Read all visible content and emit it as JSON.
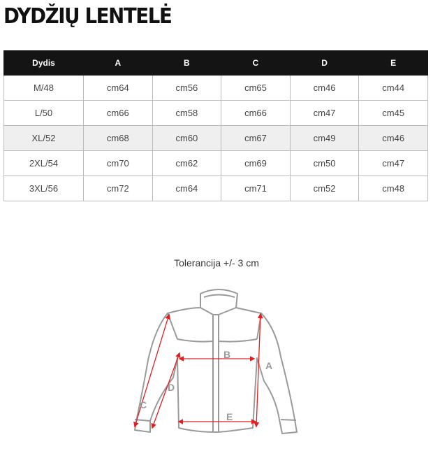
{
  "title": "DYDŽIŲ LENTELĖ",
  "table": {
    "headers": [
      "Dydis",
      "A",
      "B",
      "C",
      "D",
      "E"
    ],
    "rows": [
      [
        "M/48",
        "cm64",
        "cm56",
        "cm65",
        "cm46",
        "cm44"
      ],
      [
        "L/50",
        "cm66",
        "cm58",
        "cm66",
        "cm47",
        "cm45"
      ],
      [
        "XL/52",
        "cm68",
        "cm60",
        "cm67",
        "cm49",
        "cm46"
      ],
      [
        "2XL/54",
        "cm70",
        "cm62",
        "cm69",
        "cm50",
        "cm47"
      ],
      [
        "3XL/56",
        "cm72",
        "cm64",
        "cm71",
        "cm52",
        "cm48"
      ]
    ]
  },
  "tolerance": "Tolerancija +/- 3 cm",
  "diagram": {
    "labels": {
      "A": "A",
      "B": "B",
      "C": "C",
      "D": "D",
      "E": "E"
    },
    "arrow_color": "#e02020",
    "outline_color": "#9a9a9a"
  }
}
